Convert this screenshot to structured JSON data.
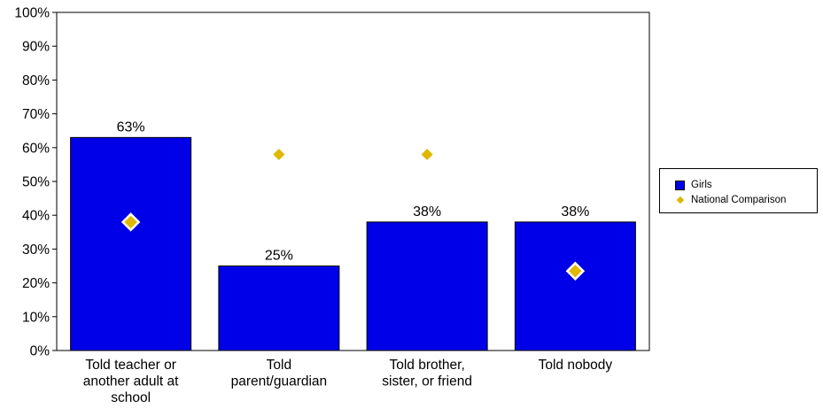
{
  "chart_data": {
    "type": "bar",
    "categories": [
      [
        "Told teacher or",
        "another adult at",
        "school"
      ],
      [
        "Told",
        "parent/guardian"
      ],
      [
        "Told brother,",
        "sister, or friend"
      ],
      [
        "Told nobody"
      ]
    ],
    "series": [
      {
        "name": "Girls",
        "kind": "bar",
        "color": "#0000E8",
        "values": [
          63,
          25,
          38,
          38
        ],
        "labels": [
          "63%",
          "25%",
          "38%",
          "38%"
        ]
      },
      {
        "name": "National Comparison",
        "kind": "marker",
        "color": "#E0B800",
        "values": [
          38,
          58,
          58,
          23.5
        ]
      }
    ],
    "yticks": [
      "0%",
      "10%",
      "20%",
      "30%",
      "40%",
      "50%",
      "60%",
      "70%",
      "80%",
      "90%",
      "100%"
    ],
    "ylim": [
      0,
      100
    ],
    "grid": false,
    "legend_position": "right"
  }
}
